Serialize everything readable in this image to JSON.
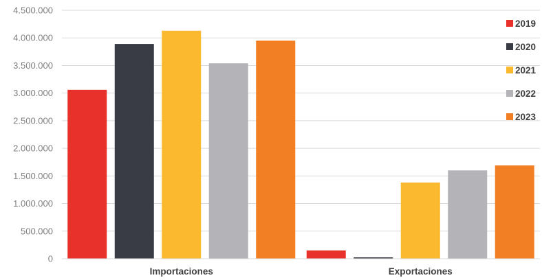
{
  "chart_data": {
    "type": "bar",
    "categories": [
      "Importaciones",
      "Exportaciones"
    ],
    "series": [
      {
        "name": "2019",
        "color": "#e8312a",
        "values": [
          3060000,
          150000
        ]
      },
      {
        "name": "2020",
        "color": "#393c45",
        "values": [
          3890000,
          25000
        ]
      },
      {
        "name": "2021",
        "color": "#fbb92f",
        "values": [
          4130000,
          1380000
        ]
      },
      {
        "name": "2022",
        "color": "#b4b3b8",
        "values": [
          3540000,
          1600000
        ]
      },
      {
        "name": "2023",
        "color": "#f37f24",
        "values": [
          3950000,
          1690000
        ]
      }
    ],
    "ylim": [
      0,
      4500000
    ],
    "yticks": [
      "0",
      "500.000",
      "1.000.000",
      "1.500.000",
      "2.000.000",
      "2.500.000",
      "3.000.000",
      "3.500.000",
      "4.000.000",
      "4.500.000"
    ],
    "grid": true,
    "legend_position": "right"
  }
}
